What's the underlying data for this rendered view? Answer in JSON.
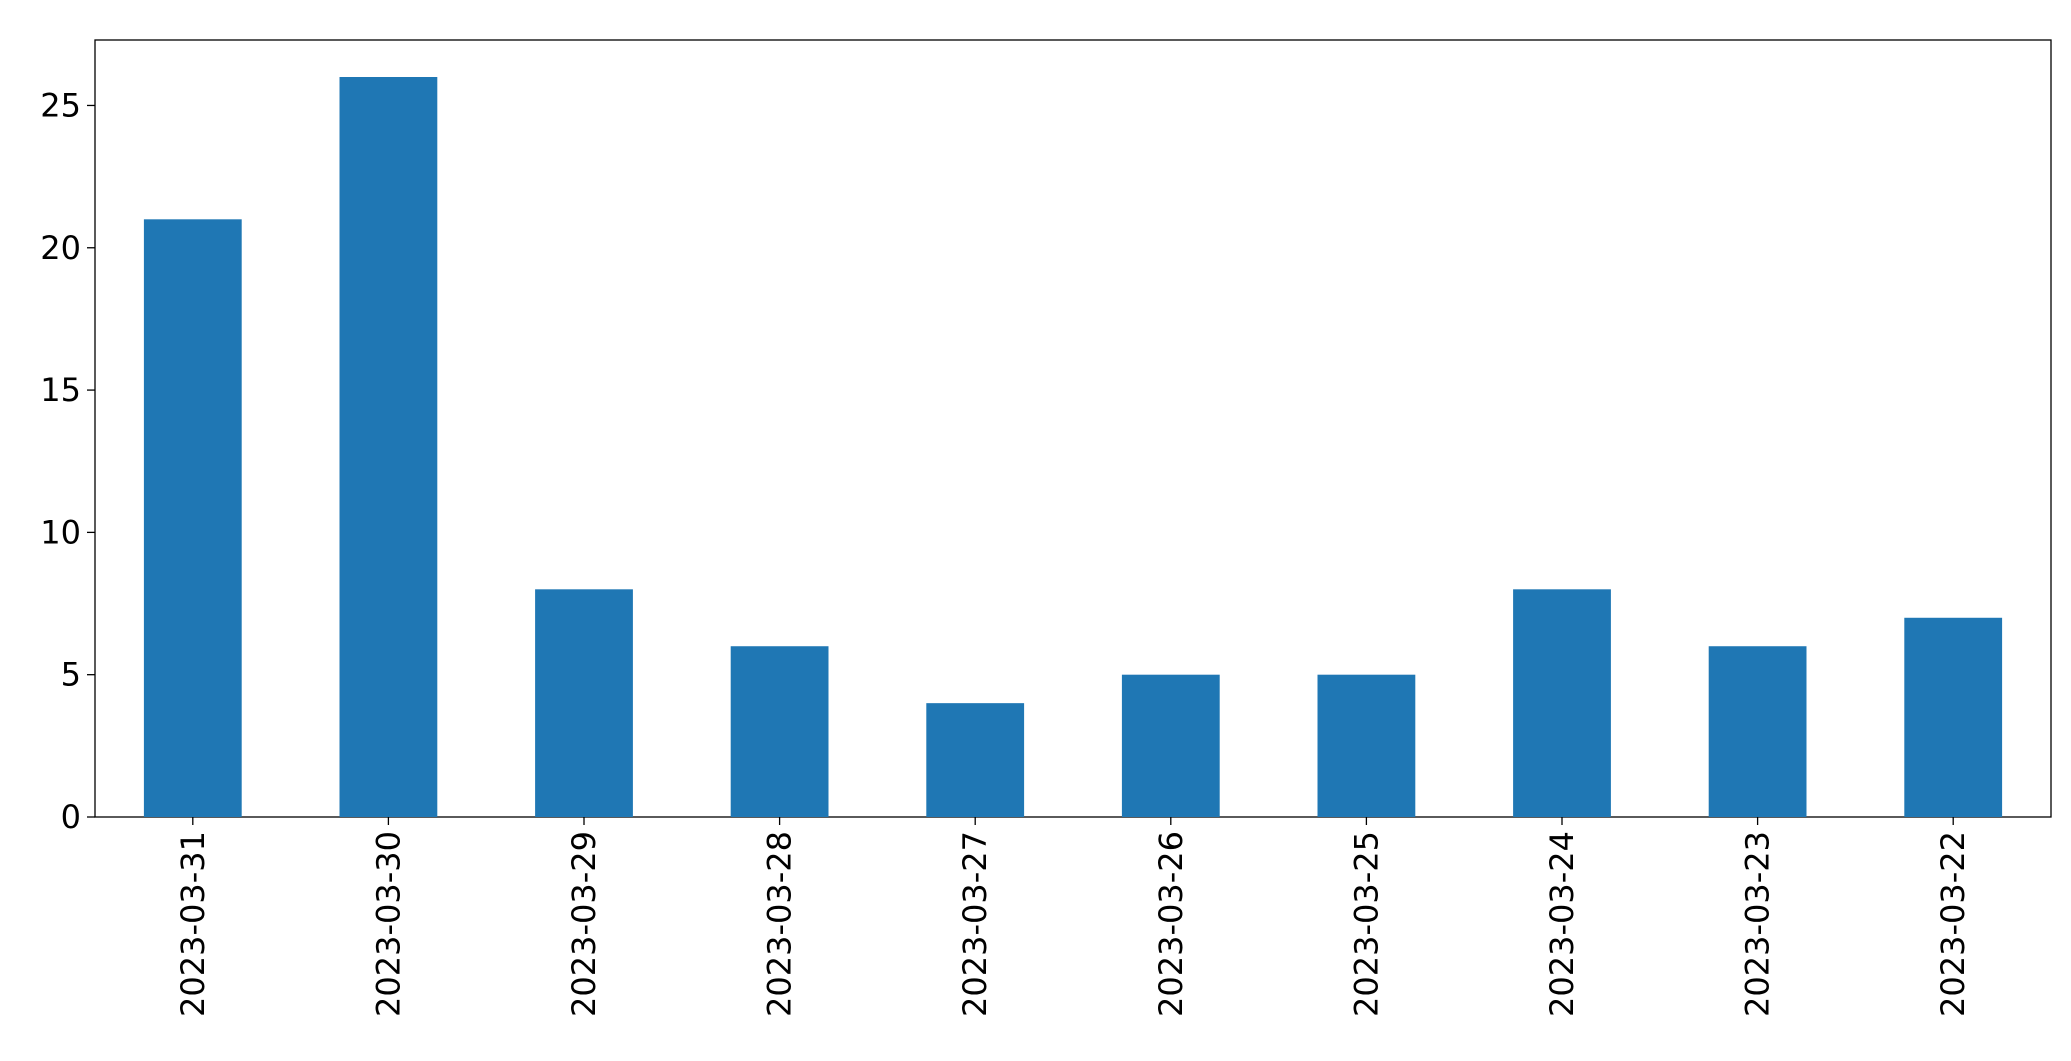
{
  "chart_data": {
    "type": "bar",
    "categories": [
      "2023-03-31",
      "2023-03-30",
      "2023-03-29",
      "2023-03-28",
      "2023-03-27",
      "2023-03-26",
      "2023-03-25",
      "2023-03-24",
      "2023-03-23",
      "2023-03-22"
    ],
    "values": [
      21,
      26,
      8,
      6,
      4,
      5,
      5,
      8,
      6,
      7
    ],
    "color": "#1f77b4",
    "ylim": [
      0,
      27.3
    ],
    "yticks": [
      0,
      5,
      10,
      15,
      20,
      25
    ],
    "grid": false
  }
}
